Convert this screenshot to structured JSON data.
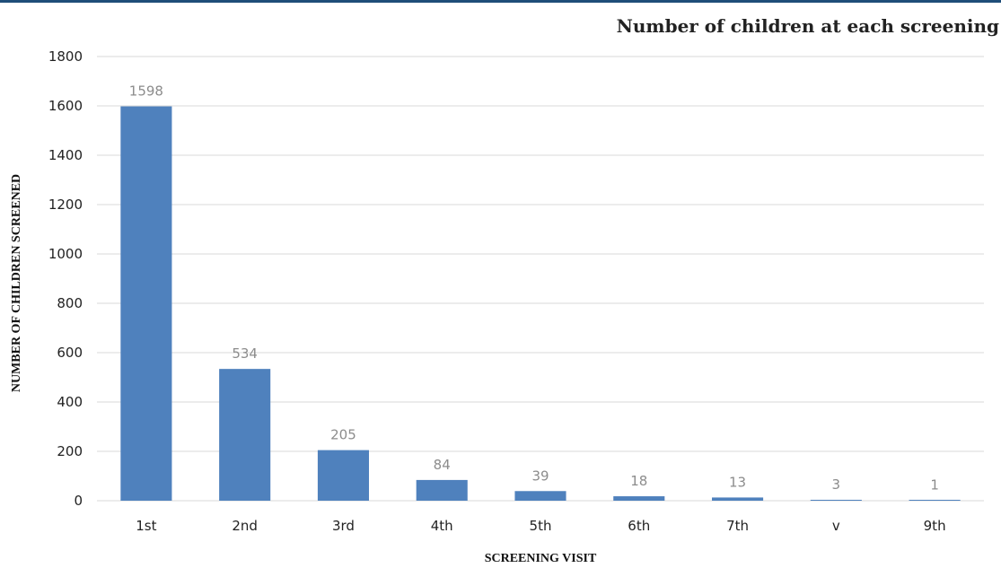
{
  "chart_data": {
    "type": "bar",
    "title": "Number of children at each screening",
    "xlabel": "SCREENING VISIT",
    "ylabel": "NUMBER OF CHILDREN SCREENED",
    "categories": [
      "1st",
      "2nd",
      "3rd",
      "4th",
      "5th",
      "6th",
      "7th",
      "v",
      "9th"
    ],
    "values": [
      1598,
      534,
      205,
      84,
      39,
      18,
      13,
      3,
      1
    ],
    "ylim": [
      0,
      1800
    ],
    "yticks": [
      0,
      200,
      400,
      600,
      800,
      1000,
      1200,
      1400,
      1600,
      1800
    ],
    "grid": true,
    "bar_color": "#4f81bd",
    "data_label_color": "#8c8c8c"
  }
}
